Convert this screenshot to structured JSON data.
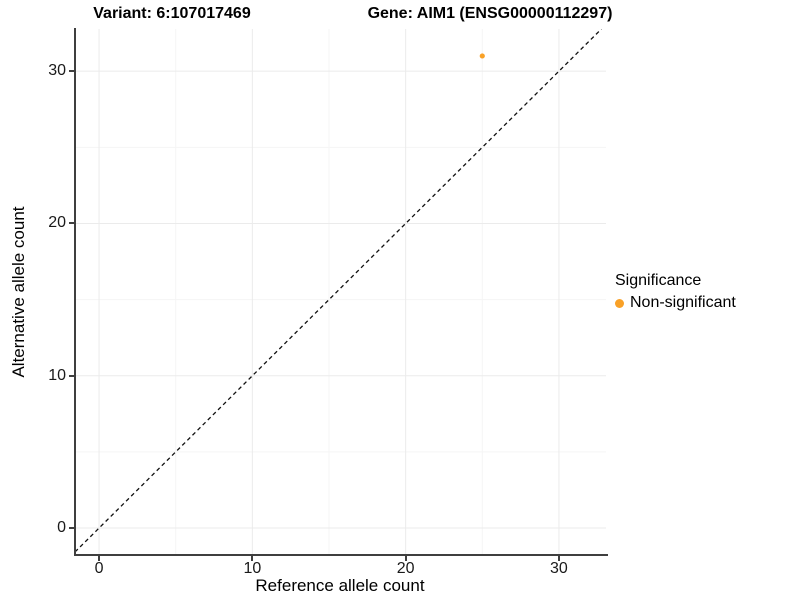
{
  "titles": {
    "variant": "Variant: 6:107017469",
    "gene": "Gene: AIM1 (ENSG00000112297)"
  },
  "axes": {
    "x": {
      "label": "Reference allele count",
      "tick_values": [
        0,
        10,
        20,
        30
      ]
    },
    "y": {
      "label": "Alternative allele count",
      "tick_values": [
        0,
        10,
        20,
        30
      ]
    }
  },
  "legend": {
    "title": "Significance",
    "items": [
      {
        "label": "Non-significant",
        "color": "#F9A127"
      }
    ]
  },
  "colors": {
    "point": "#F9A127",
    "grid_major": "#EBEBEB",
    "grid_minor": "#F5F5F5",
    "axis_line": "#3F3F3F",
    "dashed_line": "#111111"
  },
  "chart_data": {
    "type": "scatter",
    "title": "Variant: 6:107017469 / Gene: AIM1 (ENSG00000112297)",
    "xlabel": "Reference allele count",
    "ylabel": "Alternative allele count",
    "xlim": [
      -1.57,
      33.07
    ],
    "ylim": [
      -1.77,
      32.77
    ],
    "x_major": [
      0,
      10,
      20,
      30
    ],
    "x_minor": [
      5,
      15,
      25
    ],
    "y_major": [
      0,
      10,
      20,
      30
    ],
    "y_minor": [
      5,
      15,
      25
    ],
    "grid": true,
    "legend_position": "right",
    "identity_line": {
      "slope": 1,
      "intercept": 0,
      "style": "dashed",
      "color": "#111111"
    },
    "series": [
      {
        "name": "Non-significant",
        "color": "#F9A127",
        "point_radius": 2.6,
        "points": [
          {
            "x": 25,
            "y": 31
          }
        ]
      }
    ]
  }
}
